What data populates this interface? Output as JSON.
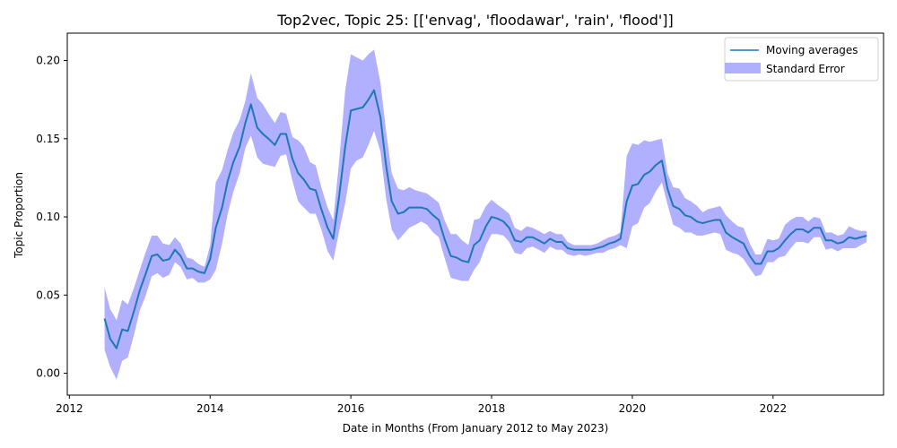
{
  "chart_data": {
    "type": "line",
    "title": "Top2vec, Topic 25: [['envag', 'floodawar', 'rain', 'flood']]",
    "xlabel": "Date in Months (From January 2012 to May 2023)",
    "ylabel": "Topic Proportion",
    "x_ticks": [
      "2012",
      "2014",
      "2016",
      "2018",
      "2020",
      "2022"
    ],
    "x_tick_values": [
      2012,
      2014,
      2016,
      2018,
      2020,
      2022
    ],
    "y_ticks": [
      "0.00",
      "0.05",
      "0.10",
      "0.15",
      "0.20"
    ],
    "y_tick_values": [
      0,
      0.05,
      0.1,
      0.15,
      0.2
    ],
    "xlim": [
      2011.97,
      2023.57
    ],
    "ylim": [
      -0.014,
      0.2175
    ],
    "grid": false,
    "legend_position": "top-right",
    "series": [
      {
        "name": "Moving averages",
        "kind": "line",
        "color": "#1f77b4"
      },
      {
        "name": "Standard Error",
        "kind": "band",
        "color": "#b0b0ff"
      }
    ],
    "x": [
      2012.5,
      2012.58,
      2012.67,
      2012.75,
      2012.83,
      2012.92,
      2013.0,
      2013.08,
      2013.17,
      2013.25,
      2013.33,
      2013.42,
      2013.5,
      2013.58,
      2013.67,
      2013.75,
      2013.83,
      2013.92,
      2014.0,
      2014.08,
      2014.17,
      2014.25,
      2014.33,
      2014.42,
      2014.5,
      2014.58,
      2014.67,
      2014.75,
      2014.83,
      2014.92,
      2015.0,
      2015.08,
      2015.17,
      2015.25,
      2015.33,
      2015.42,
      2015.5,
      2015.58,
      2015.67,
      2015.75,
      2015.83,
      2015.92,
      2016.0,
      2016.08,
      2016.17,
      2016.25,
      2016.33,
      2016.42,
      2016.5,
      2016.58,
      2016.67,
      2016.75,
      2016.83,
      2016.92,
      2017.0,
      2017.08,
      2017.17,
      2017.25,
      2017.33,
      2017.42,
      2017.5,
      2017.58,
      2017.67,
      2017.75,
      2017.83,
      2017.92,
      2018.0,
      2018.08,
      2018.17,
      2018.25,
      2018.33,
      2018.42,
      2018.5,
      2018.58,
      2018.67,
      2018.75,
      2018.83,
      2018.92,
      2019.0,
      2019.08,
      2019.17,
      2019.25,
      2019.33,
      2019.42,
      2019.5,
      2019.58,
      2019.67,
      2019.75,
      2019.83,
      2019.92,
      2020.0,
      2020.08,
      2020.17,
      2020.25,
      2020.33,
      2020.42,
      2020.5,
      2020.58,
      2020.67,
      2020.75,
      2020.83,
      2020.92,
      2021.0,
      2021.08,
      2021.17,
      2021.25,
      2021.33,
      2021.42,
      2021.5,
      2021.58,
      2021.67,
      2021.75,
      2021.83,
      2021.92,
      2022.0,
      2022.08,
      2022.17,
      2022.25,
      2022.33,
      2022.42,
      2022.5,
      2022.58,
      2022.67,
      2022.75,
      2022.83,
      2022.92,
      2023.0,
      2023.08,
      2023.17,
      2023.25,
      2023.33
    ],
    "mean": [
      0.035,
      0.022,
      0.016,
      0.028,
      0.027,
      0.04,
      0.053,
      0.063,
      0.075,
      0.076,
      0.072,
      0.073,
      0.079,
      0.075,
      0.067,
      0.067,
      0.065,
      0.064,
      0.073,
      0.093,
      0.106,
      0.123,
      0.135,
      0.145,
      0.16,
      0.172,
      0.157,
      0.153,
      0.15,
      0.146,
      0.153,
      0.153,
      0.137,
      0.128,
      0.124,
      0.118,
      0.117,
      0.105,
      0.093,
      0.086,
      0.112,
      0.145,
      0.168,
      0.169,
      0.17,
      0.175,
      0.181,
      0.164,
      0.133,
      0.11,
      0.102,
      0.103,
      0.106,
      0.106,
      0.106,
      0.105,
      0.101,
      0.098,
      0.086,
      0.075,
      0.074,
      0.072,
      0.071,
      0.082,
      0.085,
      0.094,
      0.1,
      0.099,
      0.097,
      0.093,
      0.085,
      0.084,
      0.087,
      0.087,
      0.085,
      0.083,
      0.086,
      0.084,
      0.084,
      0.08,
      0.079,
      0.079,
      0.079,
      0.079,
      0.08,
      0.081,
      0.083,
      0.084,
      0.086,
      0.11,
      0.12,
      0.121,
      0.127,
      0.129,
      0.133,
      0.136,
      0.118,
      0.107,
      0.105,
      0.101,
      0.1,
      0.097,
      0.096,
      0.097,
      0.098,
      0.098,
      0.09,
      0.087,
      0.085,
      0.083,
      0.075,
      0.07,
      0.07,
      0.078,
      0.078,
      0.08,
      0.085,
      0.089,
      0.092,
      0.092,
      0.09,
      0.093,
      0.093,
      0.085,
      0.085,
      0.083,
      0.084,
      0.087,
      0.086,
      0.087,
      0.088
    ],
    "upper": [
      0.055,
      0.041,
      0.034,
      0.047,
      0.044,
      0.055,
      0.066,
      0.077,
      0.088,
      0.088,
      0.083,
      0.082,
      0.087,
      0.083,
      0.074,
      0.073,
      0.07,
      0.068,
      0.082,
      0.122,
      0.13,
      0.143,
      0.154,
      0.162,
      0.174,
      0.192,
      0.176,
      0.172,
      0.166,
      0.16,
      0.167,
      0.166,
      0.151,
      0.149,
      0.145,
      0.135,
      0.133,
      0.119,
      0.106,
      0.098,
      0.134,
      0.181,
      0.204,
      0.202,
      0.2,
      0.204,
      0.207,
      0.186,
      0.155,
      0.128,
      0.118,
      0.117,
      0.119,
      0.117,
      0.116,
      0.115,
      0.112,
      0.109,
      0.098,
      0.089,
      0.089,
      0.085,
      0.082,
      0.098,
      0.099,
      0.107,
      0.111,
      0.108,
      0.105,
      0.102,
      0.093,
      0.091,
      0.094,
      0.093,
      0.091,
      0.089,
      0.091,
      0.089,
      0.089,
      0.084,
      0.082,
      0.082,
      0.082,
      0.082,
      0.083,
      0.085,
      0.087,
      0.088,
      0.09,
      0.139,
      0.147,
      0.146,
      0.149,
      0.148,
      0.149,
      0.15,
      0.128,
      0.119,
      0.118,
      0.112,
      0.11,
      0.107,
      0.103,
      0.105,
      0.106,
      0.107,
      0.101,
      0.097,
      0.094,
      0.093,
      0.083,
      0.076,
      0.076,
      0.086,
      0.085,
      0.086,
      0.095,
      0.098,
      0.1,
      0.1,
      0.097,
      0.1,
      0.099,
      0.09,
      0.09,
      0.088,
      0.089,
      0.094,
      0.092,
      0.091,
      0.091
    ],
    "lower": [
      0.015,
      0.004,
      -0.004,
      0.008,
      0.01,
      0.025,
      0.04,
      0.049,
      0.062,
      0.064,
      0.061,
      0.063,
      0.071,
      0.068,
      0.06,
      0.061,
      0.058,
      0.058,
      0.06,
      0.066,
      0.083,
      0.102,
      0.116,
      0.128,
      0.144,
      0.152,
      0.138,
      0.134,
      0.133,
      0.132,
      0.139,
      0.14,
      0.123,
      0.11,
      0.106,
      0.102,
      0.102,
      0.092,
      0.078,
      0.072,
      0.09,
      0.109,
      0.131,
      0.136,
      0.138,
      0.146,
      0.155,
      0.142,
      0.112,
      0.092,
      0.085,
      0.089,
      0.093,
      0.095,
      0.097,
      0.095,
      0.09,
      0.087,
      0.074,
      0.061,
      0.06,
      0.059,
      0.059,
      0.066,
      0.071,
      0.082,
      0.089,
      0.089,
      0.088,
      0.084,
      0.077,
      0.076,
      0.08,
      0.081,
      0.079,
      0.077,
      0.081,
      0.079,
      0.079,
      0.076,
      0.075,
      0.076,
      0.075,
      0.076,
      0.077,
      0.077,
      0.079,
      0.08,
      0.082,
      0.08,
      0.094,
      0.096,
      0.106,
      0.109,
      0.116,
      0.122,
      0.108,
      0.095,
      0.093,
      0.09,
      0.09,
      0.088,
      0.088,
      0.089,
      0.09,
      0.089,
      0.079,
      0.077,
      0.076,
      0.073,
      0.067,
      0.062,
      0.063,
      0.071,
      0.071,
      0.074,
      0.075,
      0.08,
      0.084,
      0.084,
      0.083,
      0.087,
      0.087,
      0.079,
      0.08,
      0.078,
      0.08,
      0.08,
      0.08,
      0.082,
      0.084
    ]
  }
}
